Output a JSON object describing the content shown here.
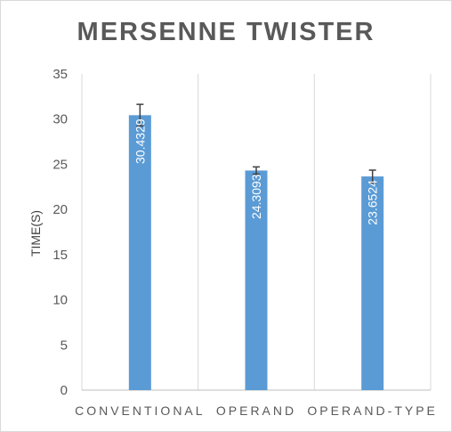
{
  "chart_data": {
    "type": "bar",
    "title": "MERSENNE TWISTER",
    "ylabel": "TIME(S)",
    "xlabel": "",
    "categories": [
      "CONVENTIONAL",
      "OPERAND",
      "OPERAND-TYPE"
    ],
    "values": [
      30.4329,
      24.3093,
      23.6524
    ],
    "value_labels": [
      "30.4329",
      "24.3093",
      "23.6524"
    ],
    "error_bars": [
      1.2,
      0.4,
      0.7
    ],
    "ylim": [
      0,
      35
    ],
    "yticks": [
      0,
      5,
      10,
      15,
      20,
      25,
      30,
      35
    ],
    "grid": "vertical category separators",
    "legend": "none",
    "bar_color": "#5b9bd5"
  }
}
